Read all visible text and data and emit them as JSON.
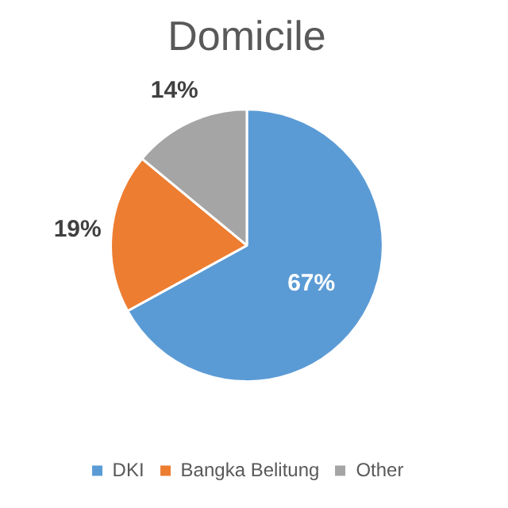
{
  "chart_data": {
    "type": "pie",
    "title": "Domicile",
    "categories": [
      "DKI",
      "Bangka Belitung",
      "Other"
    ],
    "values": [
      67,
      19,
      14
    ],
    "colors": [
      "#5b9bd5",
      "#ed7d31",
      "#a5a5a5"
    ],
    "value_labels": [
      "67%",
      "19%",
      "14%"
    ],
    "legend": "bottom"
  }
}
